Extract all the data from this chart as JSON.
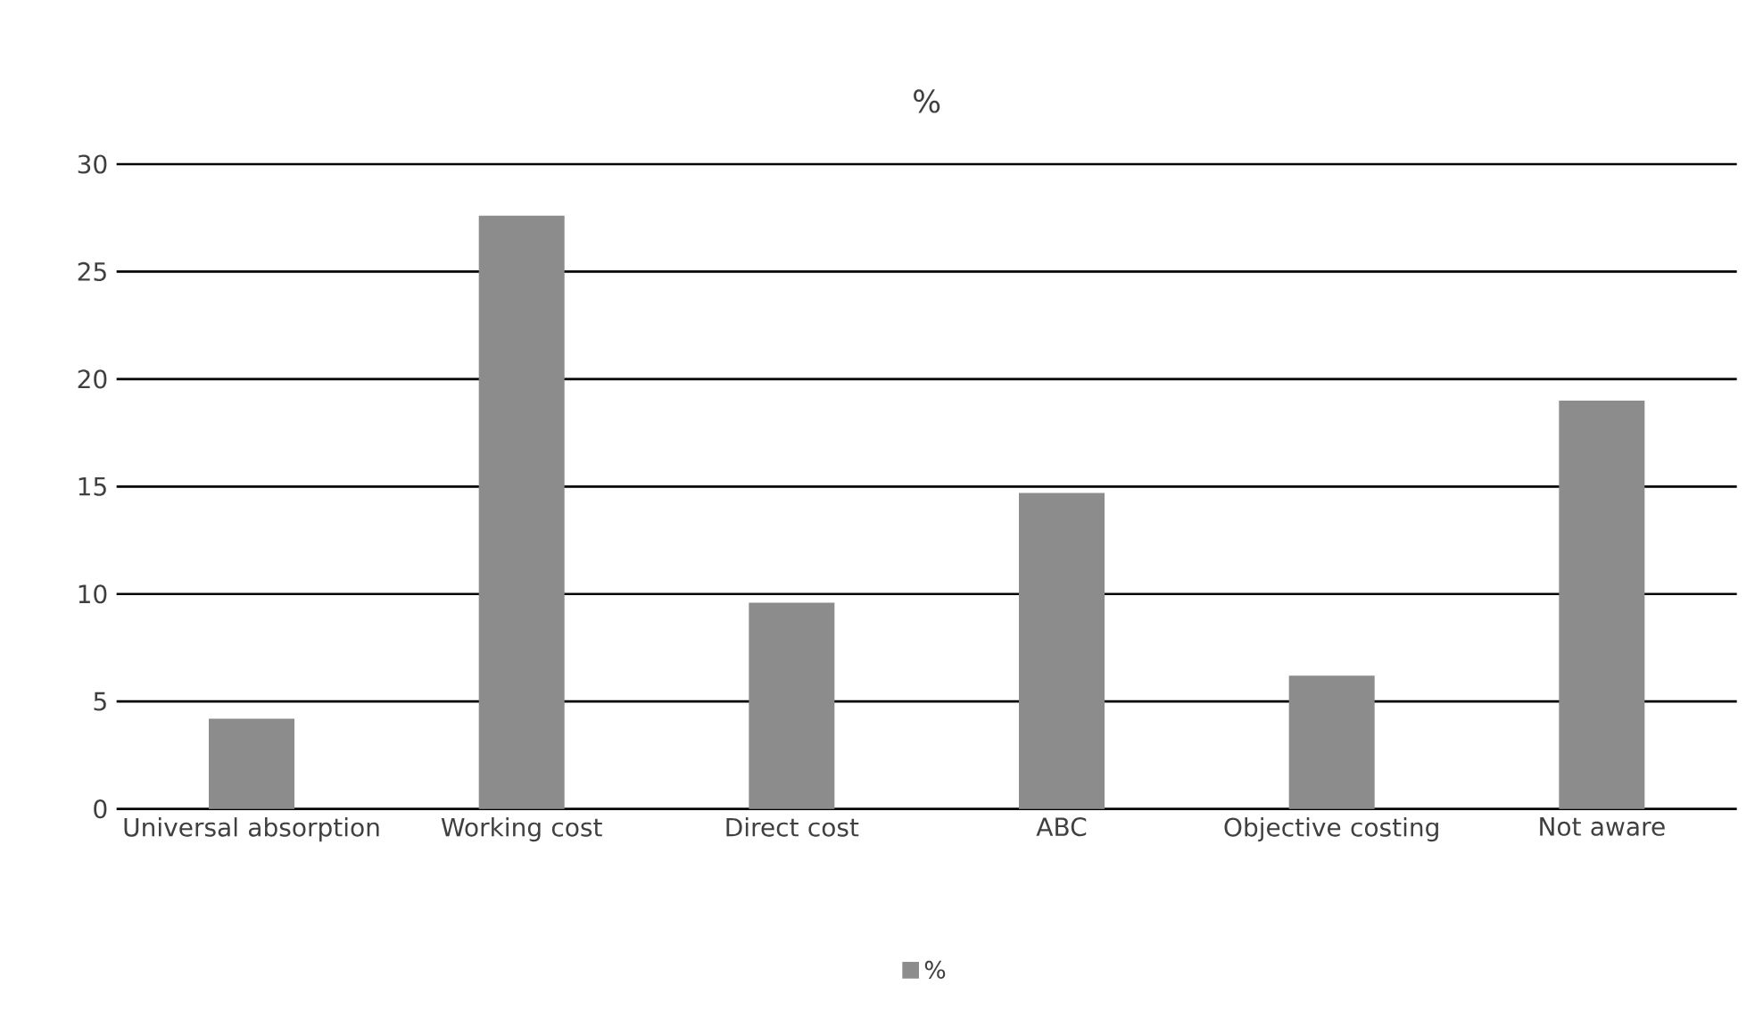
{
  "chart_data": {
    "type": "bar",
    "title": "%",
    "categories": [
      "Universal absorption",
      "Working cost",
      "Direct cost",
      "ABC",
      "Objective costing",
      "Not aware"
    ],
    "series": [
      {
        "name": "%",
        "color": "#8c8c8c",
        "values": [
          4.2,
          27.6,
          9.6,
          14.7,
          6.2,
          19.0
        ]
      }
    ],
    "ylim": [
      0,
      30
    ],
    "yticks": [
      0,
      5,
      10,
      15,
      20,
      25,
      30
    ],
    "grid": "y",
    "legend": "bottom"
  }
}
